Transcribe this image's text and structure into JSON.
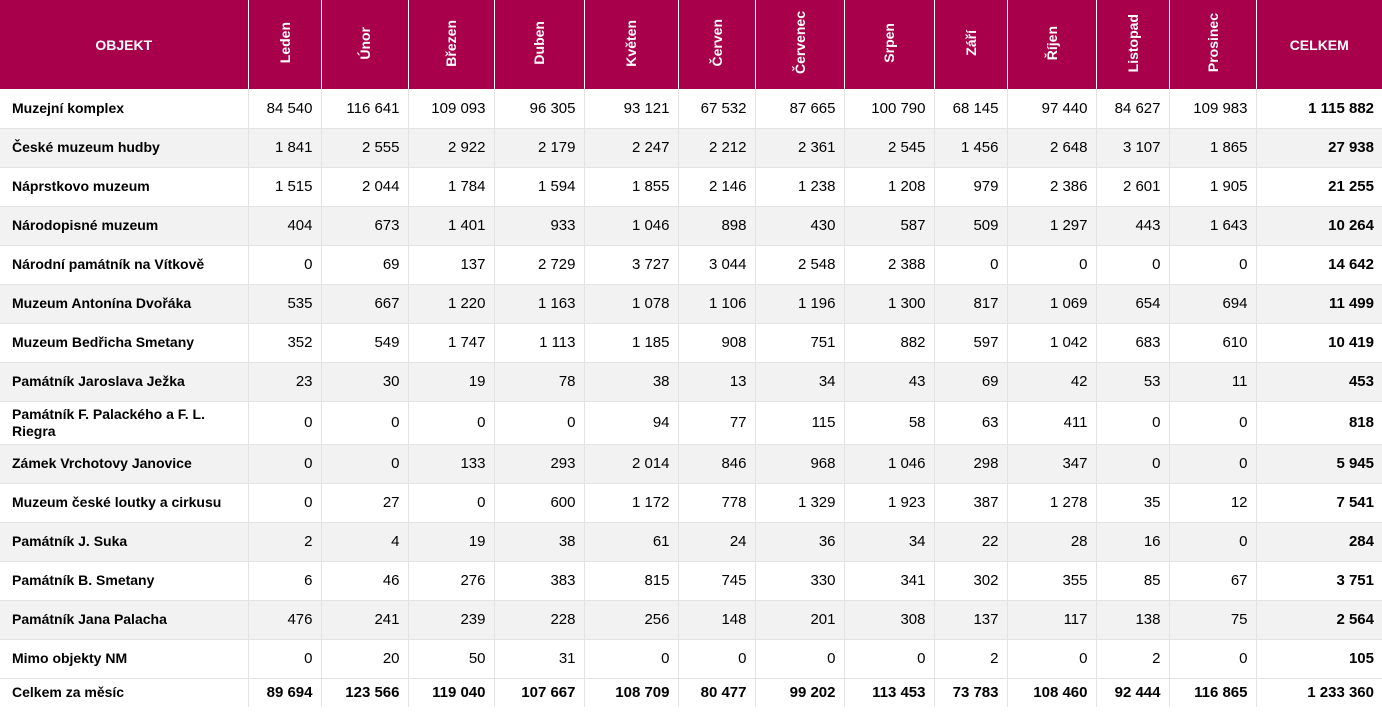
{
  "header": {
    "object": "OBJEKT",
    "months": [
      "Leden",
      "Únor",
      "Březen",
      "Duben",
      "Květen",
      "Červen",
      "Červenec",
      "Srpen",
      "Září",
      "Říjen",
      "Listopad",
      "Prosinec"
    ],
    "total": "CELKEM"
  },
  "rows": [
    {
      "name": "Muzejní komplex",
      "values": [
        "84 540",
        "116 641",
        "109 093",
        "96 305",
        "93 121",
        "67 532",
        "87 665",
        "100 790",
        "68 145",
        "97 440",
        "84 627",
        "109 983"
      ],
      "total": "1 115 882"
    },
    {
      "name": "České muzeum hudby",
      "values": [
        "1 841",
        "2 555",
        "2 922",
        "2 179",
        "2 247",
        "2 212",
        "2 361",
        "2 545",
        "1 456",
        "2 648",
        "3 107",
        "1 865"
      ],
      "total": "27 938"
    },
    {
      "name": "Náprstkovo muzeum",
      "values": [
        "1 515",
        "2 044",
        "1 784",
        "1 594",
        "1 855",
        "2 146",
        "1 238",
        "1 208",
        "979",
        "2 386",
        "2 601",
        "1 905"
      ],
      "total": "21 255"
    },
    {
      "name": "Národopisné muzeum",
      "values": [
        "404",
        "673",
        "1 401",
        "933",
        "1 046",
        "898",
        "430",
        "587",
        "509",
        "1 297",
        "443",
        "1 643"
      ],
      "total": "10 264"
    },
    {
      "name": "Národní památník na Vítkově",
      "values": [
        "0",
        "69",
        "137",
        "2 729",
        "3 727",
        "3 044",
        "2 548",
        "2 388",
        "0",
        "0",
        "0",
        "0"
      ],
      "total": "14 642"
    },
    {
      "name": "Muzeum Antonína Dvořáka",
      "values": [
        "535",
        "667",
        "1 220",
        "1 163",
        "1 078",
        "1 106",
        "1 196",
        "1 300",
        "817",
        "1 069",
        "654",
        "694"
      ],
      "total": "11 499"
    },
    {
      "name": "Muzeum Bedřicha Smetany",
      "values": [
        "352",
        "549",
        "1 747",
        "1 113",
        "1 185",
        "908",
        "751",
        "882",
        "597",
        "1 042",
        "683",
        "610"
      ],
      "total": "10 419"
    },
    {
      "name": "Památník Jaroslava Ježka",
      "values": [
        "23",
        "30",
        "19",
        "78",
        "38",
        "13",
        "34",
        "43",
        "69",
        "42",
        "53",
        "11"
      ],
      "total": "453"
    },
    {
      "name": "Památník F. Palackého a F. L. Riegra",
      "values": [
        "0",
        "0",
        "0",
        "0",
        "94",
        "77",
        "115",
        "58",
        "63",
        "411",
        "0",
        "0"
      ],
      "total": "818"
    },
    {
      "name": "Zámek Vrchotovy Janovice",
      "values": [
        "0",
        "0",
        "133",
        "293",
        "2 014",
        "846",
        "968",
        "1 046",
        "298",
        "347",
        "0",
        "0"
      ],
      "total": "5 945"
    },
    {
      "name": "Muzeum české loutky a cirkusu",
      "values": [
        "0",
        "27",
        "0",
        "600",
        "1 172",
        "778",
        "1 329",
        "1 923",
        "387",
        "1 278",
        "35",
        "12"
      ],
      "total": "7 541"
    },
    {
      "name": "Památník J. Suka",
      "values": [
        "2",
        "4",
        "19",
        "38",
        "61",
        "24",
        "36",
        "34",
        "22",
        "28",
        "16",
        "0"
      ],
      "total": "284"
    },
    {
      "name": "Památník B. Smetany",
      "values": [
        "6",
        "46",
        "276",
        "383",
        "815",
        "745",
        "330",
        "341",
        "302",
        "355",
        "85",
        "67"
      ],
      "total": "3 751"
    },
    {
      "name": "Památník Jana Palacha",
      "values": [
        "476",
        "241",
        "239",
        "228",
        "256",
        "148",
        "201",
        "308",
        "137",
        "117",
        "138",
        "75"
      ],
      "total": "2 564"
    },
    {
      "name": "Mimo objekty NM",
      "values": [
        "0",
        "20",
        "50",
        "31",
        "0",
        "0",
        "0",
        "0",
        "2",
        "0",
        "2",
        "0"
      ],
      "total": "105"
    }
  ],
  "summary": {
    "name": "Celkem za měsíc",
    "values": [
      "89 694",
      "123 566",
      "119 040",
      "107 667",
      "108 709",
      "80 477",
      "99 202",
      "113 453",
      "73 783",
      "108 460",
      "92 444",
      "116 865"
    ],
    "total": "1 233 360"
  },
  "colors": {
    "header_background": "#A8004A",
    "header_text": "#FFFFFF",
    "stripe": "#F2F2F2"
  }
}
